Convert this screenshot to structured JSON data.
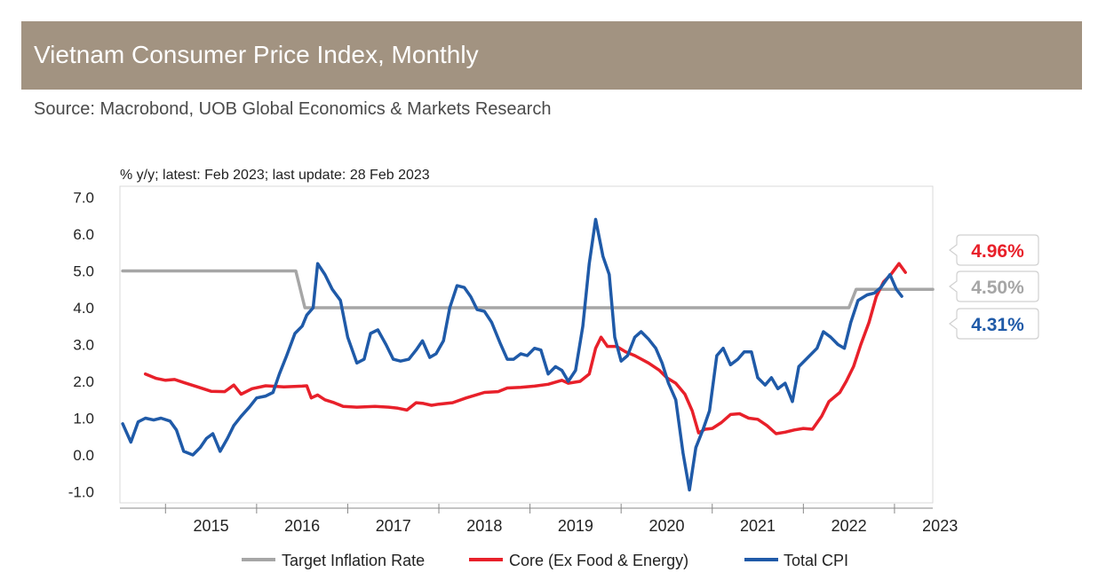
{
  "header": {
    "title": "Vietnam Consumer Price Index, Monthly",
    "source": "Source: Macrobond, UOB Global Economics & Markets Research"
  },
  "colors": {
    "target": "#a6a6a6",
    "core": "#e8202a",
    "total": "#1f5aa8",
    "header_bg": "#a29381"
  },
  "chart_data": {
    "type": "line",
    "subtitle": "% y/y; latest: Feb 2023; last update: 28 Feb 2023",
    "x_start": 2014.5,
    "x_end": 2023.42,
    "ylim": [
      -1.3,
      7.3
    ],
    "ytick_values": [
      7,
      6,
      5,
      4,
      3,
      2,
      1,
      0,
      -1
    ],
    "ytick_labels": [
      "7.0",
      "6.0",
      "5.0",
      "4.0",
      "3.0",
      "2.0",
      "1.0",
      "0.0",
      "-1.0"
    ],
    "year_labels": [
      "2015",
      "2016",
      "2017",
      "2018",
      "2019",
      "2020",
      "2021",
      "2022",
      "2023"
    ],
    "series": [
      {
        "key": "target",
        "name": "Target Inflation Rate",
        "color": "#a6a6a6",
        "points": [
          [
            2014.53,
            5.0
          ],
          [
            2016.43,
            5.0
          ],
          [
            2016.53,
            4.0
          ],
          [
            2022.5,
            4.0
          ],
          [
            2022.58,
            4.5
          ],
          [
            2023.42,
            4.5
          ]
        ]
      },
      {
        "key": "core",
        "name": "Core (Ex Food & Energy)",
        "color": "#e8202a",
        "points": [
          [
            2014.78,
            2.2
          ],
          [
            2014.9,
            2.08
          ],
          [
            2015.0,
            2.03
          ],
          [
            2015.1,
            2.05
          ],
          [
            2015.2,
            1.97
          ],
          [
            2015.35,
            1.85
          ],
          [
            2015.5,
            1.73
          ],
          [
            2015.65,
            1.72
          ],
          [
            2015.75,
            1.9
          ],
          [
            2015.83,
            1.65
          ],
          [
            2015.95,
            1.8
          ],
          [
            2016.1,
            1.88
          ],
          [
            2016.3,
            1.85
          ],
          [
            2016.5,
            1.87
          ],
          [
            2016.55,
            1.88
          ],
          [
            2016.6,
            1.55
          ],
          [
            2016.67,
            1.63
          ],
          [
            2016.75,
            1.5
          ],
          [
            2016.85,
            1.42
          ],
          [
            2016.95,
            1.32
          ],
          [
            2017.1,
            1.3
          ],
          [
            2017.3,
            1.32
          ],
          [
            2017.45,
            1.3
          ],
          [
            2017.55,
            1.27
          ],
          [
            2017.65,
            1.22
          ],
          [
            2017.75,
            1.42
          ],
          [
            2017.83,
            1.4
          ],
          [
            2017.92,
            1.35
          ],
          [
            2018.0,
            1.38
          ],
          [
            2018.15,
            1.42
          ],
          [
            2018.3,
            1.55
          ],
          [
            2018.5,
            1.7
          ],
          [
            2018.65,
            1.72
          ],
          [
            2018.75,
            1.82
          ],
          [
            2018.9,
            1.84
          ],
          [
            2019.05,
            1.87
          ],
          [
            2019.2,
            1.92
          ],
          [
            2019.35,
            2.03
          ],
          [
            2019.42,
            1.95
          ],
          [
            2019.55,
            2.0
          ],
          [
            2019.65,
            2.2
          ],
          [
            2019.72,
            2.9
          ],
          [
            2019.78,
            3.2
          ],
          [
            2019.85,
            2.95
          ],
          [
            2019.95,
            2.95
          ],
          [
            2020.05,
            2.8
          ],
          [
            2020.15,
            2.7
          ],
          [
            2020.3,
            2.5
          ],
          [
            2020.42,
            2.3
          ],
          [
            2020.5,
            2.1
          ],
          [
            2020.6,
            1.95
          ],
          [
            2020.7,
            1.65
          ],
          [
            2020.78,
            1.2
          ],
          [
            2020.85,
            0.6
          ],
          [
            2020.92,
            0.7
          ],
          [
            2021.0,
            0.72
          ],
          [
            2021.1,
            0.88
          ],
          [
            2021.2,
            1.1
          ],
          [
            2021.3,
            1.12
          ],
          [
            2021.4,
            1.0
          ],
          [
            2021.5,
            0.97
          ],
          [
            2021.6,
            0.8
          ],
          [
            2021.7,
            0.58
          ],
          [
            2021.8,
            0.62
          ],
          [
            2021.9,
            0.68
          ],
          [
            2022.0,
            0.72
          ],
          [
            2022.1,
            0.7
          ],
          [
            2022.2,
            1.05
          ],
          [
            2022.28,
            1.45
          ],
          [
            2022.4,
            1.7
          ],
          [
            2022.47,
            2.0
          ],
          [
            2022.55,
            2.4
          ],
          [
            2022.63,
            3.0
          ],
          [
            2022.72,
            3.6
          ],
          [
            2022.8,
            4.3
          ],
          [
            2022.88,
            4.7
          ],
          [
            2022.96,
            4.9
          ],
          [
            2023.05,
            5.2
          ],
          [
            2023.12,
            4.96
          ]
        ]
      },
      {
        "key": "total",
        "name": "Total CPI",
        "color": "#1f5aa8",
        "points": [
          [
            2014.53,
            0.85
          ],
          [
            2014.62,
            0.35
          ],
          [
            2014.7,
            0.9
          ],
          [
            2014.78,
            1.0
          ],
          [
            2014.87,
            0.95
          ],
          [
            2014.95,
            1.0
          ],
          [
            2015.05,
            0.92
          ],
          [
            2015.12,
            0.68
          ],
          [
            2015.2,
            0.1
          ],
          [
            2015.3,
            0.0
          ],
          [
            2015.38,
            0.2
          ],
          [
            2015.45,
            0.45
          ],
          [
            2015.52,
            0.58
          ],
          [
            2015.6,
            0.1
          ],
          [
            2015.68,
            0.45
          ],
          [
            2015.75,
            0.8
          ],
          [
            2015.83,
            1.05
          ],
          [
            2015.92,
            1.3
          ],
          [
            2016.0,
            1.55
          ],
          [
            2016.1,
            1.6
          ],
          [
            2016.18,
            1.7
          ],
          [
            2016.25,
            2.2
          ],
          [
            2016.33,
            2.7
          ],
          [
            2016.42,
            3.3
          ],
          [
            2016.5,
            3.5
          ],
          [
            2016.55,
            3.8
          ],
          [
            2016.62,
            4.0
          ],
          [
            2016.67,
            5.2
          ],
          [
            2016.75,
            4.9
          ],
          [
            2016.83,
            4.5
          ],
          [
            2016.92,
            4.2
          ],
          [
            2017.0,
            3.2
          ],
          [
            2017.1,
            2.5
          ],
          [
            2017.18,
            2.6
          ],
          [
            2017.25,
            3.3
          ],
          [
            2017.33,
            3.4
          ],
          [
            2017.42,
            3.0
          ],
          [
            2017.5,
            2.6
          ],
          [
            2017.58,
            2.55
          ],
          [
            2017.67,
            2.6
          ],
          [
            2017.75,
            2.85
          ],
          [
            2017.82,
            3.1
          ],
          [
            2017.9,
            2.65
          ],
          [
            2017.97,
            2.75
          ],
          [
            2018.05,
            3.1
          ],
          [
            2018.12,
            4.0
          ],
          [
            2018.2,
            4.6
          ],
          [
            2018.28,
            4.55
          ],
          [
            2018.35,
            4.3
          ],
          [
            2018.42,
            3.95
          ],
          [
            2018.5,
            3.9
          ],
          [
            2018.58,
            3.6
          ],
          [
            2018.67,
            3.05
          ],
          [
            2018.75,
            2.6
          ],
          [
            2018.82,
            2.6
          ],
          [
            2018.9,
            2.75
          ],
          [
            2018.97,
            2.7
          ],
          [
            2019.05,
            2.9
          ],
          [
            2019.12,
            2.85
          ],
          [
            2019.2,
            2.2
          ],
          [
            2019.28,
            2.4
          ],
          [
            2019.35,
            2.3
          ],
          [
            2019.42,
            2.0
          ],
          [
            2019.5,
            2.3
          ],
          [
            2019.58,
            3.5
          ],
          [
            2019.65,
            5.2
          ],
          [
            2019.72,
            6.4
          ],
          [
            2019.8,
            5.4
          ],
          [
            2019.87,
            4.9
          ],
          [
            2019.93,
            3.2
          ],
          [
            2020.0,
            2.55
          ],
          [
            2020.07,
            2.7
          ],
          [
            2020.15,
            3.2
          ],
          [
            2020.22,
            3.35
          ],
          [
            2020.3,
            3.15
          ],
          [
            2020.38,
            2.9
          ],
          [
            2020.45,
            2.5
          ],
          [
            2020.52,
            1.95
          ],
          [
            2020.6,
            1.5
          ],
          [
            2020.68,
            0.05
          ],
          [
            2020.75,
            -0.95
          ],
          [
            2020.82,
            0.2
          ],
          [
            2020.9,
            0.7
          ],
          [
            2020.97,
            1.2
          ],
          [
            2021.05,
            2.7
          ],
          [
            2021.12,
            2.9
          ],
          [
            2021.2,
            2.45
          ],
          [
            2021.28,
            2.6
          ],
          [
            2021.35,
            2.8
          ],
          [
            2021.43,
            2.8
          ],
          [
            2021.5,
            2.1
          ],
          [
            2021.58,
            1.9
          ],
          [
            2021.65,
            2.1
          ],
          [
            2021.72,
            1.8
          ],
          [
            2021.8,
            1.95
          ],
          [
            2021.88,
            1.45
          ],
          [
            2021.95,
            2.4
          ],
          [
            2022.05,
            2.65
          ],
          [
            2022.15,
            2.9
          ],
          [
            2022.22,
            3.35
          ],
          [
            2022.3,
            3.2
          ],
          [
            2022.38,
            3.0
          ],
          [
            2022.45,
            2.9
          ],
          [
            2022.52,
            3.6
          ],
          [
            2022.6,
            4.2
          ],
          [
            2022.7,
            4.35
          ],
          [
            2022.78,
            4.4
          ],
          [
            2022.85,
            4.55
          ],
          [
            2022.95,
            4.9
          ],
          [
            2023.02,
            4.5
          ],
          [
            2023.08,
            4.31
          ]
        ]
      }
    ],
    "end_labels": [
      {
        "key": "core",
        "text": "4.96%",
        "value": 4.96
      },
      {
        "key": "target",
        "text": "4.50%",
        "value": 4.5
      },
      {
        "key": "total",
        "text": "4.31%",
        "value": 4.31
      }
    ]
  }
}
